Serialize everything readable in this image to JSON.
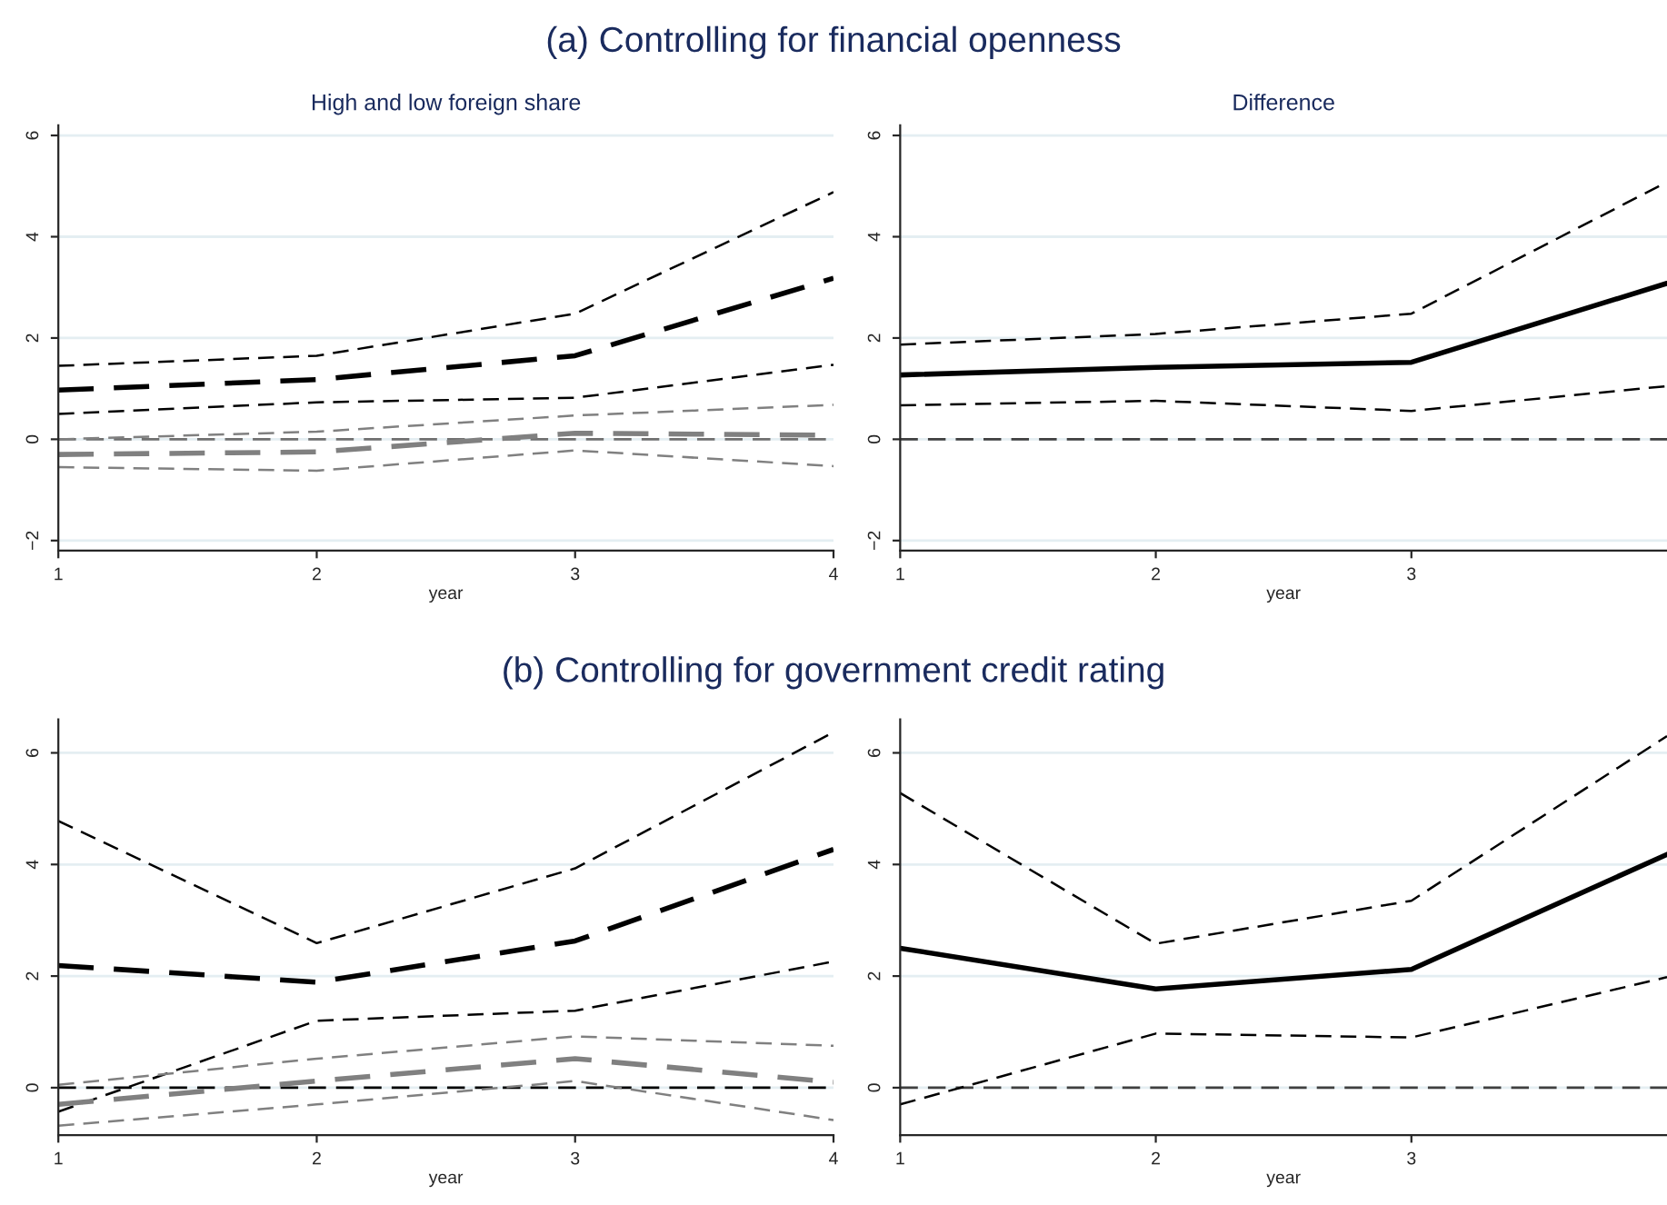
{
  "chart_data": [
    {
      "type": "line",
      "title": "High and low foreign share",
      "annotations": [
        "(a) Controlling for financial openness"
      ],
      "xlabel": "year",
      "x": [
        1,
        2,
        3,
        4
      ],
      "xlim": [
        1,
        4
      ],
      "xticks": [
        1,
        2,
        3,
        4
      ],
      "ylim": [
        -2.2,
        6.2
      ],
      "yticks": [
        {
          "value": -2,
          "label": "−2"
        },
        0,
        2,
        4,
        6
      ],
      "grid": "y",
      "legend": false,
      "line_style": "dashed",
      "series": [
        {
          "color": "#000000",
          "values": [
            1.45,
            1.65,
            2.48,
            4.88
          ]
        },
        {
          "color": "#000000",
          "values": [
            0.97,
            1.18,
            1.65,
            3.18
          ]
        },
        {
          "color": "#000000",
          "values": [
            0.5,
            0.73,
            0.82,
            1.47
          ]
        },
        {
          "color": "#808080",
          "values": [
            0.0,
            0.15,
            0.47,
            0.68
          ]
        },
        {
          "color": "#808080",
          "values": [
            -0.3,
            -0.25,
            0.12,
            0.08
          ]
        },
        {
          "color": "#808080",
          "values": [
            -0.55,
            -0.62,
            -0.22,
            -0.53
          ]
        }
      ],
      "ref_lines": [
        {
          "axis": "y",
          "value": 0,
          "color": "#707070",
          "line_style": "dashed"
        }
      ]
    },
    {
      "type": "line",
      "title": "Difference",
      "xlabel": "year",
      "x": [
        1,
        2,
        3,
        4
      ],
      "xlim": [
        1,
        4
      ],
      "xticks": [
        1,
        2,
        3
      ],
      "ylim": [
        -2.2,
        6.2
      ],
      "yticks": [
        {
          "value": -2,
          "label": "−2"
        },
        0,
        2,
        4,
        6
      ],
      "grid": "y",
      "legend": false,
      "series": [
        {
          "color": "#000000",
          "line_style": "dashed",
          "values": [
            1.87,
            2.08,
            2.48,
            5.08
          ]
        },
        {
          "color": "#000000",
          "line_style": "solid",
          "values": [
            1.27,
            1.42,
            1.52,
            3.08
          ]
        },
        {
          "color": "#000000",
          "line_style": "dashed",
          "values": [
            0.67,
            0.76,
            0.56,
            1.05
          ]
        }
      ],
      "ref_lines": [
        {
          "axis": "y",
          "value": 0,
          "color": "#404040",
          "line_style": "dashed"
        }
      ]
    },
    {
      "type": "line",
      "annotations": [
        "(b) Controlling for government credit rating"
      ],
      "xlabel": "year",
      "x": [
        1,
        2,
        3,
        4
      ],
      "xlim": [
        1,
        4
      ],
      "xticks": [
        1,
        2,
        3,
        4
      ],
      "ylim": [
        -0.85,
        6.6
      ],
      "yticks": [
        0,
        2,
        4,
        6
      ],
      "grid": "y",
      "legend": false,
      "line_style": "dashed",
      "series": [
        {
          "color": "#000000",
          "values": [
            4.78,
            2.59,
            3.93,
            6.37
          ]
        },
        {
          "color": "#000000",
          "values": [
            2.19,
            1.89,
            2.63,
            4.27
          ]
        },
        {
          "color": "#000000",
          "values": [
            -0.43,
            1.2,
            1.38,
            2.26
          ]
        },
        {
          "color": "#808080",
          "values": [
            0.05,
            0.52,
            0.92,
            0.75
          ]
        },
        {
          "color": "#808080",
          "values": [
            -0.3,
            0.12,
            0.52,
            0.1
          ]
        },
        {
          "color": "#808080",
          "values": [
            -0.68,
            -0.3,
            0.12,
            -0.58
          ]
        }
      ],
      "ref_lines": [
        {
          "axis": "y",
          "value": 0,
          "color": "#000000",
          "line_style": "dashed"
        }
      ]
    },
    {
      "type": "line",
      "xlabel": "year",
      "x": [
        1,
        2,
        3,
        4
      ],
      "xlim": [
        1,
        4
      ],
      "xticks": [
        1,
        2,
        3
      ],
      "ylim": [
        -0.85,
        6.6
      ],
      "yticks": [
        0,
        2,
        4,
        6
      ],
      "grid": "y",
      "legend": false,
      "series": [
        {
          "color": "#000000",
          "line_style": "dashed",
          "values": [
            5.28,
            2.58,
            3.35,
            6.3
          ]
        },
        {
          "color": "#000000",
          "line_style": "solid",
          "values": [
            2.5,
            1.77,
            2.12,
            4.18
          ]
        },
        {
          "color": "#000000",
          "line_style": "dashed",
          "values": [
            -0.3,
            0.97,
            0.9,
            1.98
          ]
        }
      ],
      "ref_lines": [
        {
          "axis": "y",
          "value": 0,
          "color": "#404040",
          "line_style": "dashed"
        }
      ]
    }
  ]
}
